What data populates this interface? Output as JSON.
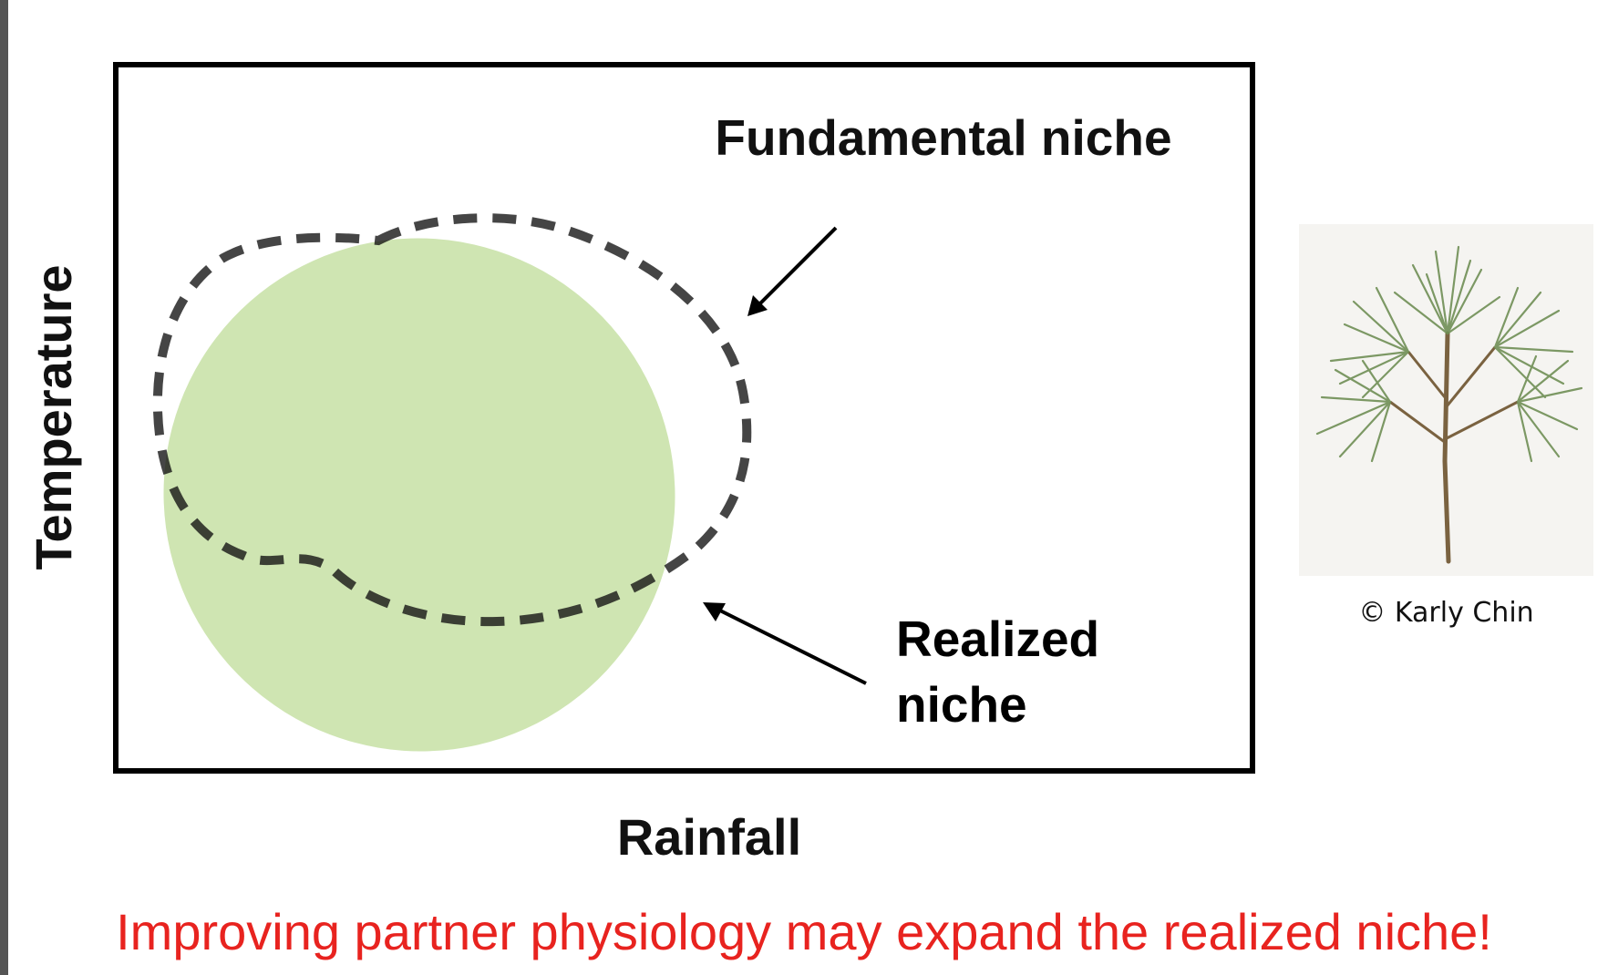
{
  "diagram": {
    "x_axis_label": "Rainfall",
    "y_axis_label": "Temperature",
    "fundamental_label": "Fundamental niche",
    "realized_label_line1": "Realized",
    "realized_label_line2": "niche",
    "realized_fill_color": "#cfe5b2",
    "boundary_color": "#111111"
  },
  "photo": {
    "subject": "pine-branch-illustration",
    "credit": "© Karly Chin"
  },
  "caption": {
    "text": "Improving partner physiology may expand the realized niche!",
    "color": "#e8231f"
  }
}
